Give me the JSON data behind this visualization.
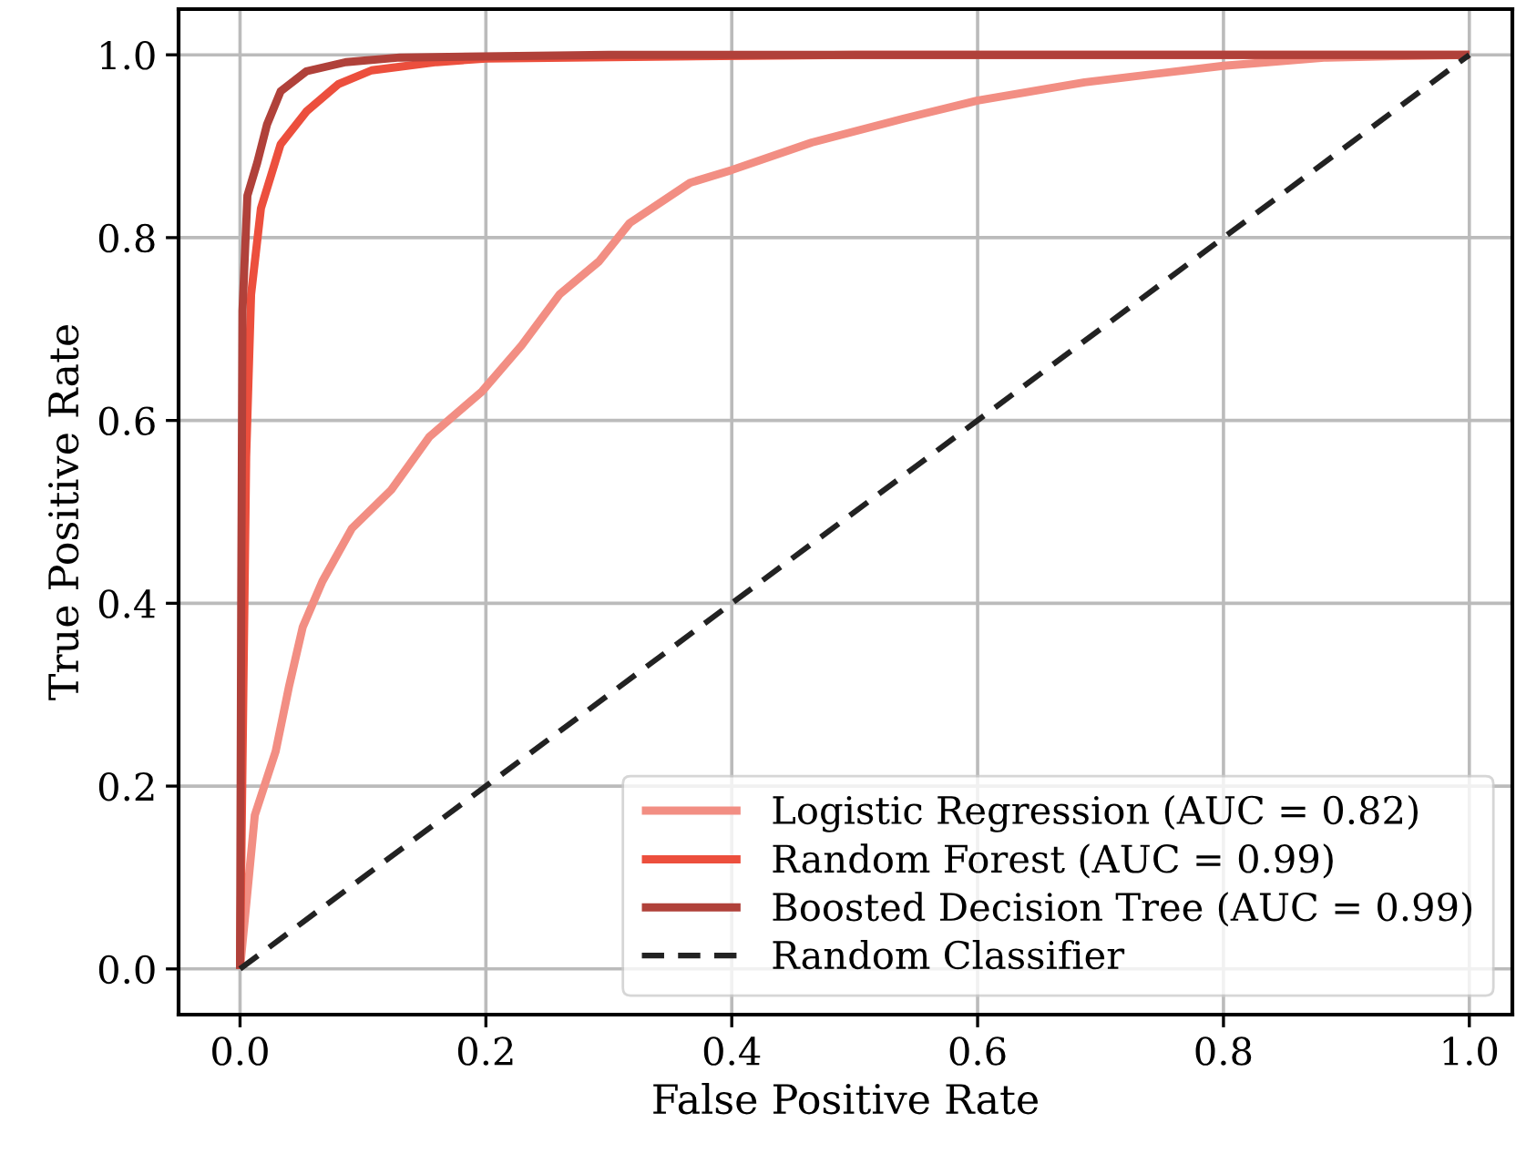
{
  "chart_data": {
    "type": "line",
    "xlabel": "False Positive Rate",
    "ylabel": "True Positive Rate",
    "xlim": [
      -0.05,
      1.035
    ],
    "ylim": [
      -0.05,
      1.05
    ],
    "xticks": [
      {
        "value": 0,
        "label": "0.0"
      },
      0.2,
      0.4,
      0.6,
      0.8,
      {
        "value": 1,
        "label": "1.0"
      }
    ],
    "yticks": [
      {
        "value": 0,
        "label": "0.0"
      },
      0.2,
      0.4,
      0.6,
      0.8,
      {
        "value": 1,
        "label": "1.0"
      }
    ],
    "grid": true,
    "legend": "bottom right",
    "marker": "none",
    "series": [
      {
        "name": "Logistic Regression (AUC = 0.82)",
        "color": "#f28e83",
        "line_style": "solid",
        "x": [
          0,
          0.012,
          0.029,
          0.04,
          0.051,
          0.067,
          0.091,
          0.123,
          0.154,
          0.197,
          0.229,
          0.26,
          0.292,
          0.317,
          0.366,
          0.4,
          0.465,
          0.539,
          0.6,
          0.687,
          0.8,
          0.884,
          1
        ],
        "values": [
          0,
          0.168,
          0.238,
          0.31,
          0.374,
          0.424,
          0.482,
          0.524,
          0.582,
          0.632,
          0.682,
          0.738,
          0.774,
          0.816,
          0.86,
          0.874,
          0.904,
          0.93,
          0.95,
          0.97,
          0.988,
          0.997,
          1
        ]
      },
      {
        "name": "Random Forest (AUC = 0.99)",
        "color": "#ec4f3d",
        "line_style": "solid",
        "x": [
          0,
          0.005,
          0.009,
          0.017,
          0.033,
          0.054,
          0.08,
          0.107,
          0.16,
          0.2,
          0.5,
          1
        ],
        "values": [
          0,
          0.56,
          0.738,
          0.832,
          0.902,
          0.938,
          0.968,
          0.983,
          0.992,
          0.996,
          1,
          1
        ]
      },
      {
        "name": "Boosted Decision Tree (AUC = 0.99)",
        "color": "#b0413a",
        "line_style": "solid",
        "x": [
          0,
          0.001,
          0.002,
          0.006,
          0.014,
          0.022,
          0.033,
          0.054,
          0.086,
          0.13,
          0.3,
          1
        ],
        "values": [
          0,
          0.418,
          0.72,
          0.846,
          0.882,
          0.924,
          0.96,
          0.982,
          0.992,
          0.997,
          1,
          1
        ]
      },
      {
        "name": "Random Classifier",
        "color": "#222222",
        "line_style": "dashed",
        "x": [
          0,
          1
        ],
        "values": [
          0,
          1
        ]
      }
    ]
  }
}
